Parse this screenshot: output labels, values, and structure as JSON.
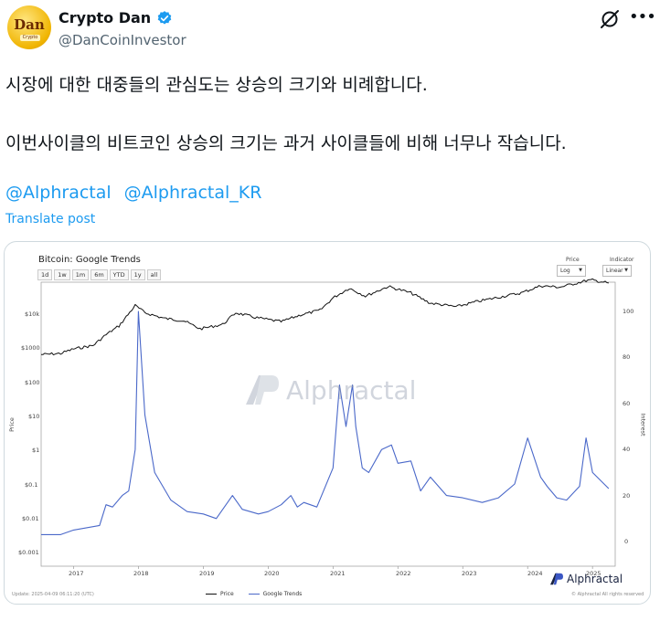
{
  "tweet": {
    "display_name": "Crypto Dan",
    "handle": "@DanCoinInvestor",
    "avatar_text": "Dan",
    "avatar_sub": "Crypto",
    "line1": "시장에 대한 대중들의 관심도는 상승의 크기와 비례합니다.",
    "line2": "이번사이클의 비트코인 상승의 크기는 과거 사이클들에 비해 너무나 작습니다.",
    "mentions": [
      "@Alphractal",
      "@Alphractal_KR"
    ],
    "translate": "Translate post",
    "verified_color": "#1d9bf0"
  },
  "icons": {
    "verified": "verified-badge-icon",
    "grok": "grok-icon",
    "more": "more-icon"
  },
  "chart": {
    "title": "Bitcoin: Google Trends",
    "ranges": [
      "1d",
      "1w",
      "1m",
      "6m",
      "YTD",
      "1y",
      "all"
    ],
    "price_label": "Price",
    "price_value": "Log",
    "indicator_label": "Indicator",
    "indicator_value": "Linear",
    "left_axis_title": "Price",
    "right_axis_title": "Interest",
    "watermark": "Alphractal",
    "brand": "Alphractal",
    "legend": [
      "Price",
      "Google Trends"
    ],
    "update_text": "Update: 2025-04-09 06:11:20 (UTC)",
    "copyright": "© Alphractal All rights reserved"
  },
  "chart_data": {
    "type": "line",
    "title": "Bitcoin: Google Trends",
    "x_ticks": [
      "2017",
      "2018",
      "2019",
      "2020",
      "2021",
      "2022",
      "2023",
      "2024",
      "2025"
    ],
    "y_left": {
      "label": "Price",
      "scale": "log",
      "ticks": [
        "$10k",
        "$1000",
        "$100",
        "$10",
        "$1",
        "$0.1",
        "$0.01",
        "$0.001"
      ]
    },
    "y_right": {
      "label": "Interest",
      "scale": "linear",
      "ticks": [
        "100",
        "80",
        "60",
        "40",
        "20",
        "0"
      ],
      "range": [
        0,
        100
      ]
    },
    "legend": [
      "Price",
      "Google Trends"
    ],
    "legend_position": "bottom",
    "series": [
      {
        "name": "Price",
        "color": "#111111",
        "axis": "left",
        "x": [
          2016.5,
          2016.8,
          2017.0,
          2017.3,
          2017.5,
          2017.7,
          2017.95,
          2018.1,
          2018.4,
          2018.7,
          2018.95,
          2019.3,
          2019.5,
          2019.8,
          2020.2,
          2020.5,
          2020.8,
          2021.0,
          2021.25,
          2021.5,
          2021.85,
          2022.2,
          2022.5,
          2022.9,
          2023.2,
          2023.5,
          2023.9,
          2024.2,
          2024.5,
          2024.9,
          2025.0,
          2025.25
        ],
        "values": [
          650,
          700,
          950,
          1200,
          2500,
          4500,
          18000,
          11000,
          7500,
          6400,
          3700,
          5000,
          11000,
          8000,
          6000,
          9500,
          13000,
          30000,
          58000,
          34000,
          65000,
          42000,
          21000,
          16500,
          23000,
          30000,
          42000,
          68000,
          62000,
          96000,
          100000,
          82000
        ]
      },
      {
        "name": "Google Trends",
        "color": "#4a68c9",
        "axis": "right",
        "x": [
          2016.5,
          2016.8,
          2017.0,
          2017.2,
          2017.4,
          2017.5,
          2017.6,
          2017.75,
          2017.85,
          2017.95,
          2018.0,
          2018.1,
          2018.25,
          2018.5,
          2018.75,
          2019.0,
          2019.2,
          2019.45,
          2019.6,
          2019.85,
          2020.0,
          2020.2,
          2020.35,
          2020.45,
          2020.55,
          2020.75,
          2021.0,
          2021.1,
          2021.2,
          2021.3,
          2021.35,
          2021.45,
          2021.55,
          2021.75,
          2021.9,
          2022.0,
          2022.2,
          2022.35,
          2022.5,
          2022.75,
          2023.0,
          2023.3,
          2023.55,
          2023.8,
          2024.0,
          2024.2,
          2024.3,
          2024.45,
          2024.6,
          2024.8,
          2024.9,
          2025.0,
          2025.25
        ],
        "values": [
          3,
          3,
          5,
          6,
          7,
          16,
          15,
          20,
          22,
          40,
          100,
          55,
          30,
          18,
          13,
          12,
          10,
          20,
          14,
          12,
          13,
          16,
          20,
          15,
          17,
          15,
          32,
          68,
          50,
          68,
          50,
          32,
          30,
          40,
          42,
          34,
          35,
          22,
          28,
          20,
          19,
          17,
          19,
          25,
          45,
          28,
          24,
          19,
          18,
          24,
          45,
          30,
          23
        ]
      }
    ]
  }
}
